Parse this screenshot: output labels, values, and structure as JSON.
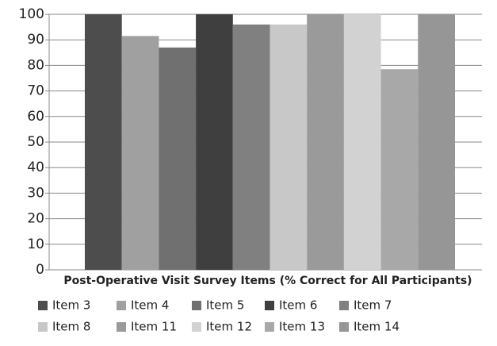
{
  "chart_data": {
    "type": "bar",
    "x_label": "Post-Operative Visit Survey Items (% Correct for All Participants)",
    "categories": [
      null
    ],
    "series": [
      {
        "name": "Item 3",
        "color": "#4d4d4d",
        "values": [
          100
        ]
      },
      {
        "name": "Item 4",
        "color": "#a0a0a0",
        "values": [
          91.5
        ]
      },
      {
        "name": "Item 5",
        "color": "#707070",
        "values": [
          87
        ]
      },
      {
        "name": "Item 6",
        "color": "#3f3f3f",
        "values": [
          100
        ]
      },
      {
        "name": "Item 7",
        "color": "#808080",
        "values": [
          96
        ]
      },
      {
        "name": "Item 8",
        "color": "#c8c8c8",
        "values": [
          96
        ]
      },
      {
        "name": "Item 11",
        "color": "#9a9a9a",
        "values": [
          100
        ]
      },
      {
        "name": "Item 12",
        "color": "#d2d2d2",
        "values": [
          100
        ]
      },
      {
        "name": "Item 13",
        "color": "#a8a8a8",
        "values": [
          78.5
        ]
      },
      {
        "name": "Item 14",
        "color": "#969696",
        "values": [
          100
        ]
      }
    ],
    "ylim": [
      0,
      100
    ],
    "yticks": [
      0,
      10,
      20,
      30,
      40,
      50,
      60,
      70,
      80,
      90,
      100
    ],
    "grid": true,
    "legend": "bottom"
  }
}
